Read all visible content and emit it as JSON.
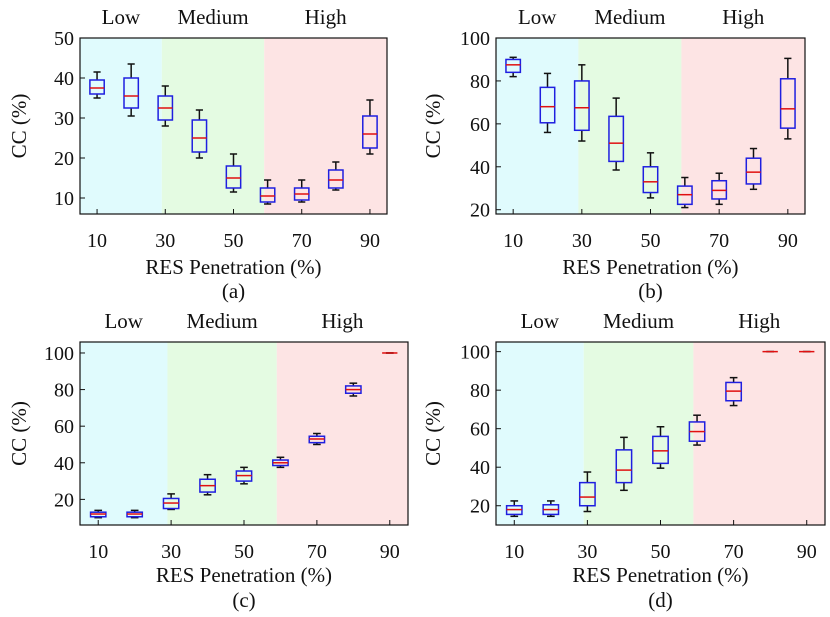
{
  "figure": {
    "region_labels": [
      "Low",
      "Medium",
      "High"
    ],
    "region_colors": [
      "#e0fbfd",
      "#e4fbe2",
      "#fde4e4"
    ],
    "box_color": "#1f1fe0",
    "median_color": "#e01010",
    "whisker_color": "#111111"
  },
  "chart_data": [
    {
      "type": "box",
      "panel_label": "(a)",
      "xlabel": "RES Penetration (%)",
      "ylabel": "CC (%)",
      "ylim": [
        6,
        50
      ],
      "yticks": [
        10,
        20,
        30,
        40,
        50
      ],
      "categories": [
        10,
        20,
        30,
        40,
        50,
        60,
        70,
        80,
        90
      ],
      "xtick_labels": [
        "10",
        "30",
        "50",
        "70",
        "90"
      ],
      "regions": [
        {
          "name": "Low",
          "from": 5,
          "to": 29
        },
        {
          "name": "Medium",
          "from": 29,
          "to": 59
        },
        {
          "name": "High",
          "from": 59,
          "to": 95
        }
      ],
      "boxes": [
        {
          "x": 10,
          "min": 35,
          "q1": 36,
          "median": 37.5,
          "q3": 39.5,
          "max": 41.5
        },
        {
          "x": 20,
          "min": 30.5,
          "q1": 32.5,
          "median": 35.5,
          "q3": 40,
          "max": 43.5
        },
        {
          "x": 30,
          "min": 28,
          "q1": 29.5,
          "median": 32.5,
          "q3": 35.5,
          "max": 38
        },
        {
          "x": 40,
          "min": 20,
          "q1": 21.5,
          "median": 25,
          "q3": 29.5,
          "max": 32
        },
        {
          "x": 50,
          "min": 11.5,
          "q1": 12.5,
          "median": 15,
          "q3": 18,
          "max": 21
        },
        {
          "x": 60,
          "min": 8.5,
          "q1": 9,
          "median": 10.5,
          "q3": 12.5,
          "max": 14.5
        },
        {
          "x": 70,
          "min": 9,
          "q1": 9.5,
          "median": 11,
          "q3": 12.5,
          "max": 14.5
        },
        {
          "x": 80,
          "min": 12,
          "q1": 12.5,
          "median": 14.5,
          "q3": 17,
          "max": 19
        },
        {
          "x": 90,
          "min": 21,
          "q1": 22.5,
          "median": 26,
          "q3": 30.5,
          "max": 34.5
        }
      ]
    },
    {
      "type": "box",
      "panel_label": "(b)",
      "xlabel": "RES Penetration (%)",
      "ylabel": "CC (%)",
      "ylim": [
        18,
        100
      ],
      "yticks": [
        20,
        40,
        60,
        80,
        100
      ],
      "categories": [
        10,
        20,
        30,
        40,
        50,
        60,
        70,
        80,
        90
      ],
      "xtick_labels": [
        "10",
        "30",
        "50",
        "70",
        "90"
      ],
      "regions": [
        {
          "name": "Low",
          "from": 5,
          "to": 29
        },
        {
          "name": "Medium",
          "from": 29,
          "to": 59
        },
        {
          "name": "High",
          "from": 59,
          "to": 95
        }
      ],
      "boxes": [
        {
          "x": 10,
          "min": 82,
          "q1": 84,
          "median": 87.5,
          "q3": 90,
          "max": 91
        },
        {
          "x": 20,
          "min": 56,
          "q1": 60.5,
          "median": 68,
          "q3": 77,
          "max": 83.5
        },
        {
          "x": 30,
          "min": 52,
          "q1": 57,
          "median": 67.5,
          "q3": 80,
          "max": 87.5
        },
        {
          "x": 40,
          "min": 38.5,
          "q1": 42.5,
          "median": 51,
          "q3": 63.5,
          "max": 72
        },
        {
          "x": 50,
          "min": 25.5,
          "q1": 28,
          "median": 33,
          "q3": 40,
          "max": 46.5
        },
        {
          "x": 60,
          "min": 21,
          "q1": 22.5,
          "median": 27,
          "q3": 31,
          "max": 35
        },
        {
          "x": 70,
          "min": 22.5,
          "q1": 25,
          "median": 29,
          "q3": 33.5,
          "max": 37
        },
        {
          "x": 80,
          "min": 29.5,
          "q1": 32,
          "median": 37.5,
          "q3": 44,
          "max": 48.5
        },
        {
          "x": 90,
          "min": 53,
          "q1": 58,
          "median": 67,
          "q3": 81,
          "max": 90.5
        }
      ]
    },
    {
      "type": "box",
      "panel_label": "(c)",
      "xlabel": "RES Penetration (%)",
      "ylabel": "CC (%)",
      "ylim": [
        6,
        106
      ],
      "yticks": [
        20,
        40,
        60,
        80,
        100
      ],
      "categories": [
        10,
        20,
        30,
        40,
        50,
        60,
        70,
        80,
        90
      ],
      "xtick_labels": [
        "10",
        "30",
        "50",
        "70",
        "90"
      ],
      "regions": [
        {
          "name": "Low",
          "from": 5,
          "to": 29
        },
        {
          "name": "Medium",
          "from": 29,
          "to": 59
        },
        {
          "name": "High",
          "from": 59,
          "to": 95
        }
      ],
      "boxes": [
        {
          "x": 10,
          "min": 10,
          "q1": 10.5,
          "median": 12,
          "q3": 13,
          "max": 14
        },
        {
          "x": 20,
          "min": 10,
          "q1": 10.5,
          "median": 12,
          "q3": 13,
          "max": 14
        },
        {
          "x": 30,
          "min": 14.5,
          "q1": 15,
          "median": 18,
          "q3": 20.5,
          "max": 23
        },
        {
          "x": 40,
          "min": 22.5,
          "q1": 24,
          "median": 27.5,
          "q3": 31,
          "max": 33.5
        },
        {
          "x": 50,
          "min": 28.5,
          "q1": 30,
          "median": 33,
          "q3": 35.5,
          "max": 37.5
        },
        {
          "x": 60,
          "min": 37.5,
          "q1": 38.5,
          "median": 40,
          "q3": 41.5,
          "max": 43
        },
        {
          "x": 70,
          "min": 50,
          "q1": 51,
          "median": 53,
          "q3": 54.5,
          "max": 56
        },
        {
          "x": 80,
          "min": 76.5,
          "q1": 78,
          "median": 80,
          "q3": 82,
          "max": 83.5
        },
        {
          "x": 90,
          "min": 100,
          "q1": 100,
          "median": 100,
          "q3": 100,
          "max": 100
        }
      ]
    },
    {
      "type": "box",
      "panel_label": "(d)",
      "xlabel": "RES Penetration (%)",
      "ylabel": "CC (%)",
      "ylim": [
        10,
        105
      ],
      "yticks": [
        20,
        40,
        60,
        80,
        100
      ],
      "categories": [
        10,
        20,
        30,
        40,
        50,
        60,
        70,
        80,
        90
      ],
      "xtick_labels": [
        "10",
        "30",
        "50",
        "70",
        "90"
      ],
      "regions": [
        {
          "name": "Low",
          "from": 5,
          "to": 29
        },
        {
          "name": "Medium",
          "from": 29,
          "to": 59
        },
        {
          "name": "High",
          "from": 59,
          "to": 95
        }
      ],
      "boxes": [
        {
          "x": 10,
          "min": 14.5,
          "q1": 15.5,
          "median": 18,
          "q3": 20,
          "max": 22.5
        },
        {
          "x": 20,
          "min": 14.5,
          "q1": 15.5,
          "median": 18,
          "q3": 20.5,
          "max": 22.5
        },
        {
          "x": 30,
          "min": 17,
          "q1": 20,
          "median": 24.5,
          "q3": 32,
          "max": 37.5
        },
        {
          "x": 40,
          "min": 28,
          "q1": 32,
          "median": 38.5,
          "q3": 49,
          "max": 55.5
        },
        {
          "x": 50,
          "min": 39.5,
          "q1": 42,
          "median": 48.5,
          "q3": 56,
          "max": 61
        },
        {
          "x": 60,
          "min": 51.5,
          "q1": 53.5,
          "median": 58.5,
          "q3": 63.5,
          "max": 67
        },
        {
          "x": 70,
          "min": 72,
          "q1": 74.5,
          "median": 79.5,
          "q3": 84,
          "max": 86.5
        },
        {
          "x": 80,
          "min": 100,
          "q1": 100,
          "median": 100,
          "q3": 100,
          "max": 100
        },
        {
          "x": 90,
          "min": 100,
          "q1": 100,
          "median": 100,
          "q3": 100,
          "max": 100
        }
      ]
    }
  ]
}
